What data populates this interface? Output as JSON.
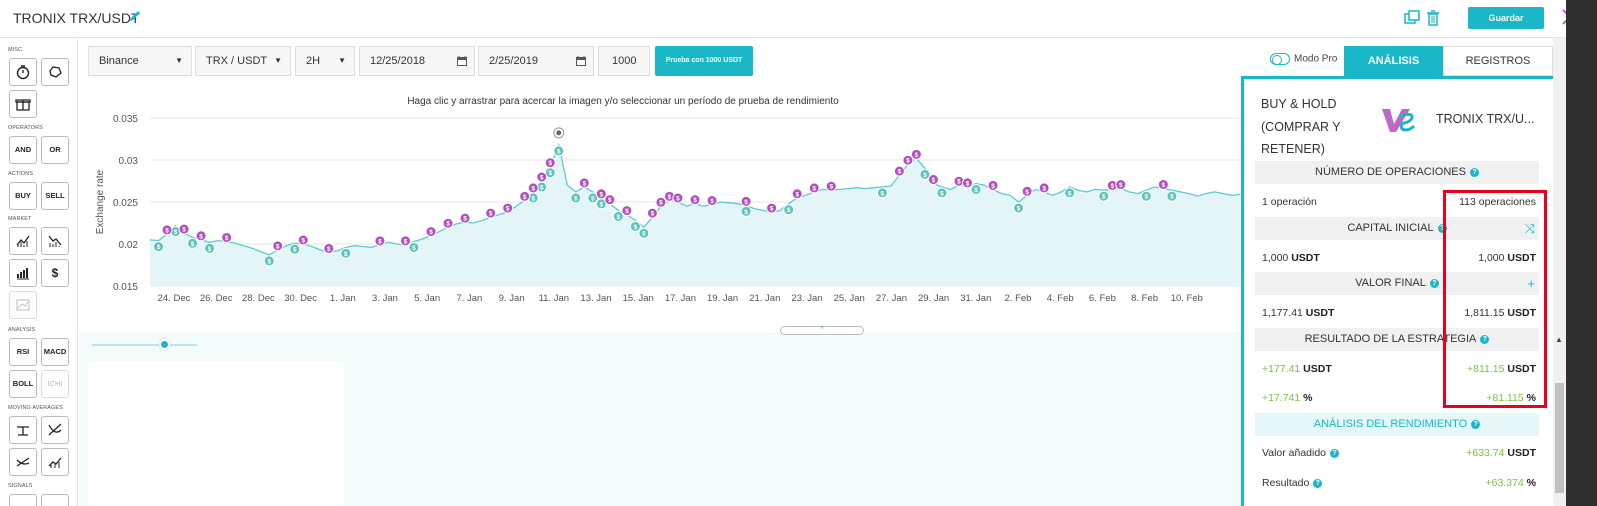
{
  "header": {
    "title": "TRONIX TRX/USDT",
    "save_label": "Guardar"
  },
  "toolbar": {
    "sections": {
      "misc": "MISC",
      "operators": "OPERATORS",
      "actions": "ACTIONS",
      "market": "MARKET",
      "analysis": "ANALYSIS",
      "moving_averages": "MOVING AVERAGES",
      "signals": "SIGNALS"
    },
    "buttons": {
      "and": "AND",
      "or": "OR",
      "buy": "BUY",
      "sell": "SELL",
      "dollar": "$",
      "rsi": "RSI",
      "macd": "MACD",
      "boll": "BOLL",
      "ichi": "ICHI"
    }
  },
  "controls": {
    "exchange": "Binance",
    "pair": "TRX / USDT",
    "interval": "2H",
    "start_date": "12/25/2018",
    "end_date": "2/25/2019",
    "amount": "1000",
    "test_button": "Prueba con 1000 USDT"
  },
  "chart_data": {
    "type": "line",
    "title": "Haga clic y arrastrar para acercar la imagen y/o seleccionar un período de prueba de rendimiento",
    "ylabel": "Exchange rate",
    "ylim": [
      0.015,
      0.035
    ],
    "yticks": [
      "0.035",
      "0.03",
      "0.025",
      "0.02",
      "0.015"
    ],
    "xticks": [
      "24. Dec",
      "26. Dec",
      "28. Dec",
      "30. Dec",
      "1. Jan",
      "3. Jan",
      "5. Jan",
      "7. Jan",
      "9. Jan",
      "11. Jan",
      "13. Jan",
      "15. Jan",
      "17. Jan",
      "19. Jan",
      "21. Jan",
      "23. Jan",
      "25. Jan",
      "27. Jan",
      "29. Jan",
      "31. Jan",
      "2. Feb",
      "4. Feb",
      "6. Feb",
      "8. Feb",
      "10. Feb"
    ],
    "series": [
      {
        "values": [
          0.0205,
          0.0204,
          0.0212,
          0.0222,
          0.0213,
          0.0208,
          0.0205,
          0.0202,
          0.0204,
          0.0203,
          0.0201,
          0.0198,
          0.0195,
          0.0191,
          0.0187,
          0.0193,
          0.0198,
          0.0201,
          0.02,
          0.0197,
          0.0193,
          0.019,
          0.0192,
          0.0196,
          0.0198,
          0.0197,
          0.0196,
          0.0199,
          0.0202,
          0.02,
          0.0199,
          0.0203,
          0.0206,
          0.021,
          0.0215,
          0.022,
          0.0224,
          0.0226,
          0.0225,
          0.0228,
          0.0232,
          0.0235,
          0.0238,
          0.0245,
          0.0252,
          0.0262,
          0.0275,
          0.0292,
          0.0318,
          0.027,
          0.0262,
          0.0268,
          0.0262,
          0.0255,
          0.0248,
          0.024,
          0.0235,
          0.0228,
          0.022,
          0.0232,
          0.0245,
          0.0252,
          0.025,
          0.0245,
          0.0248,
          0.0245,
          0.0247,
          0.025,
          0.0249,
          0.0248,
          0.0246,
          0.0242,
          0.024,
          0.0238,
          0.024,
          0.0248,
          0.0255,
          0.0258,
          0.0262,
          0.0265,
          0.0264,
          0.0265,
          0.0266,
          0.0267,
          0.0266,
          0.0267,
          0.0268,
          0.0269,
          0.0282,
          0.0295,
          0.0302,
          0.029,
          0.0272,
          0.0268,
          0.0265,
          0.027,
          0.0268,
          0.0272,
          0.027,
          0.0265,
          0.026,
          0.0258,
          0.025,
          0.0258,
          0.0265,
          0.0262,
          0.0258,
          0.0262,
          0.0268,
          0.0264,
          0.0262,
          0.0265,
          0.0264,
          0.0265,
          0.0266,
          0.0262,
          0.026,
          0.0264,
          0.0268,
          0.0266,
          0.0264,
          0.0262,
          0.026,
          0.0257,
          0.026,
          0.0262,
          0.026,
          0.0258,
          0.0259
        ]
      }
    ],
    "markers": {
      "buy_color": "#5cc2bc",
      "sell_color": "#b14fbf",
      "buy": [
        1,
        3,
        5,
        7,
        14,
        17,
        23,
        31,
        45,
        46,
        47,
        48,
        50,
        52,
        53,
        55,
        57,
        58,
        70,
        75,
        86,
        91,
        93,
        97,
        102,
        108,
        112,
        117,
        120
      ],
      "sell": [
        2,
        4,
        6,
        9,
        15,
        18,
        21,
        27,
        30,
        33,
        35,
        37,
        40,
        42,
        44,
        45,
        46,
        47,
        51,
        53,
        54,
        56,
        59,
        60,
        61,
        62,
        64,
        66,
        70,
        73,
        76,
        78,
        80,
        88,
        89,
        90,
        92,
        95,
        96,
        99,
        103,
        105,
        113,
        114,
        119
      ]
    },
    "peak_marker_color": "#666666"
  },
  "panel": {
    "tabs": {
      "pro_mode": "Modo Pro",
      "analysis": "ANÁLISIS",
      "records": "REGISTROS"
    },
    "compare_left_lines": [
      "BUY & HOLD",
      "(COMPRAR Y",
      "RETENER)"
    ],
    "compare_right": "TRONIX TRX/U...",
    "num_ops": {
      "header": "NÚMERO DE OPERACIONES",
      "left": "1 operación",
      "right": "113 operaciones"
    },
    "capital": {
      "header": "CAPITAL INICIAL",
      "left_num": "1,000",
      "left_unit": "USDT",
      "right_num": "1,000",
      "right_unit": "USDT"
    },
    "final": {
      "header": "VALOR FINAL",
      "left_num": "1,177.41",
      "left_unit": "USDT",
      "right_num": "1,811.15",
      "right_unit": "USDT"
    },
    "result": {
      "header": "RESULTADO DE LA ESTRATEGIA",
      "left_num": "+177.41",
      "left_unit": "USDT",
      "right_num": "+811.15",
      "right_unit": "USDT",
      "left_pct": "+17.741",
      "right_pct": "+81.115",
      "pct_unit": "%"
    },
    "performance": {
      "header": "ANÁLISIS DEL RENDIMIENTO",
      "added_label": "Valor añadido",
      "added_num": "+633.74",
      "added_unit": "USDT",
      "result_label": "Resultado",
      "result_num": "+63.374",
      "result_unit": "%"
    }
  },
  "colors": {
    "accent": "#19b7c8",
    "highlight": "#e8001c",
    "positive": "#7cc243"
  }
}
